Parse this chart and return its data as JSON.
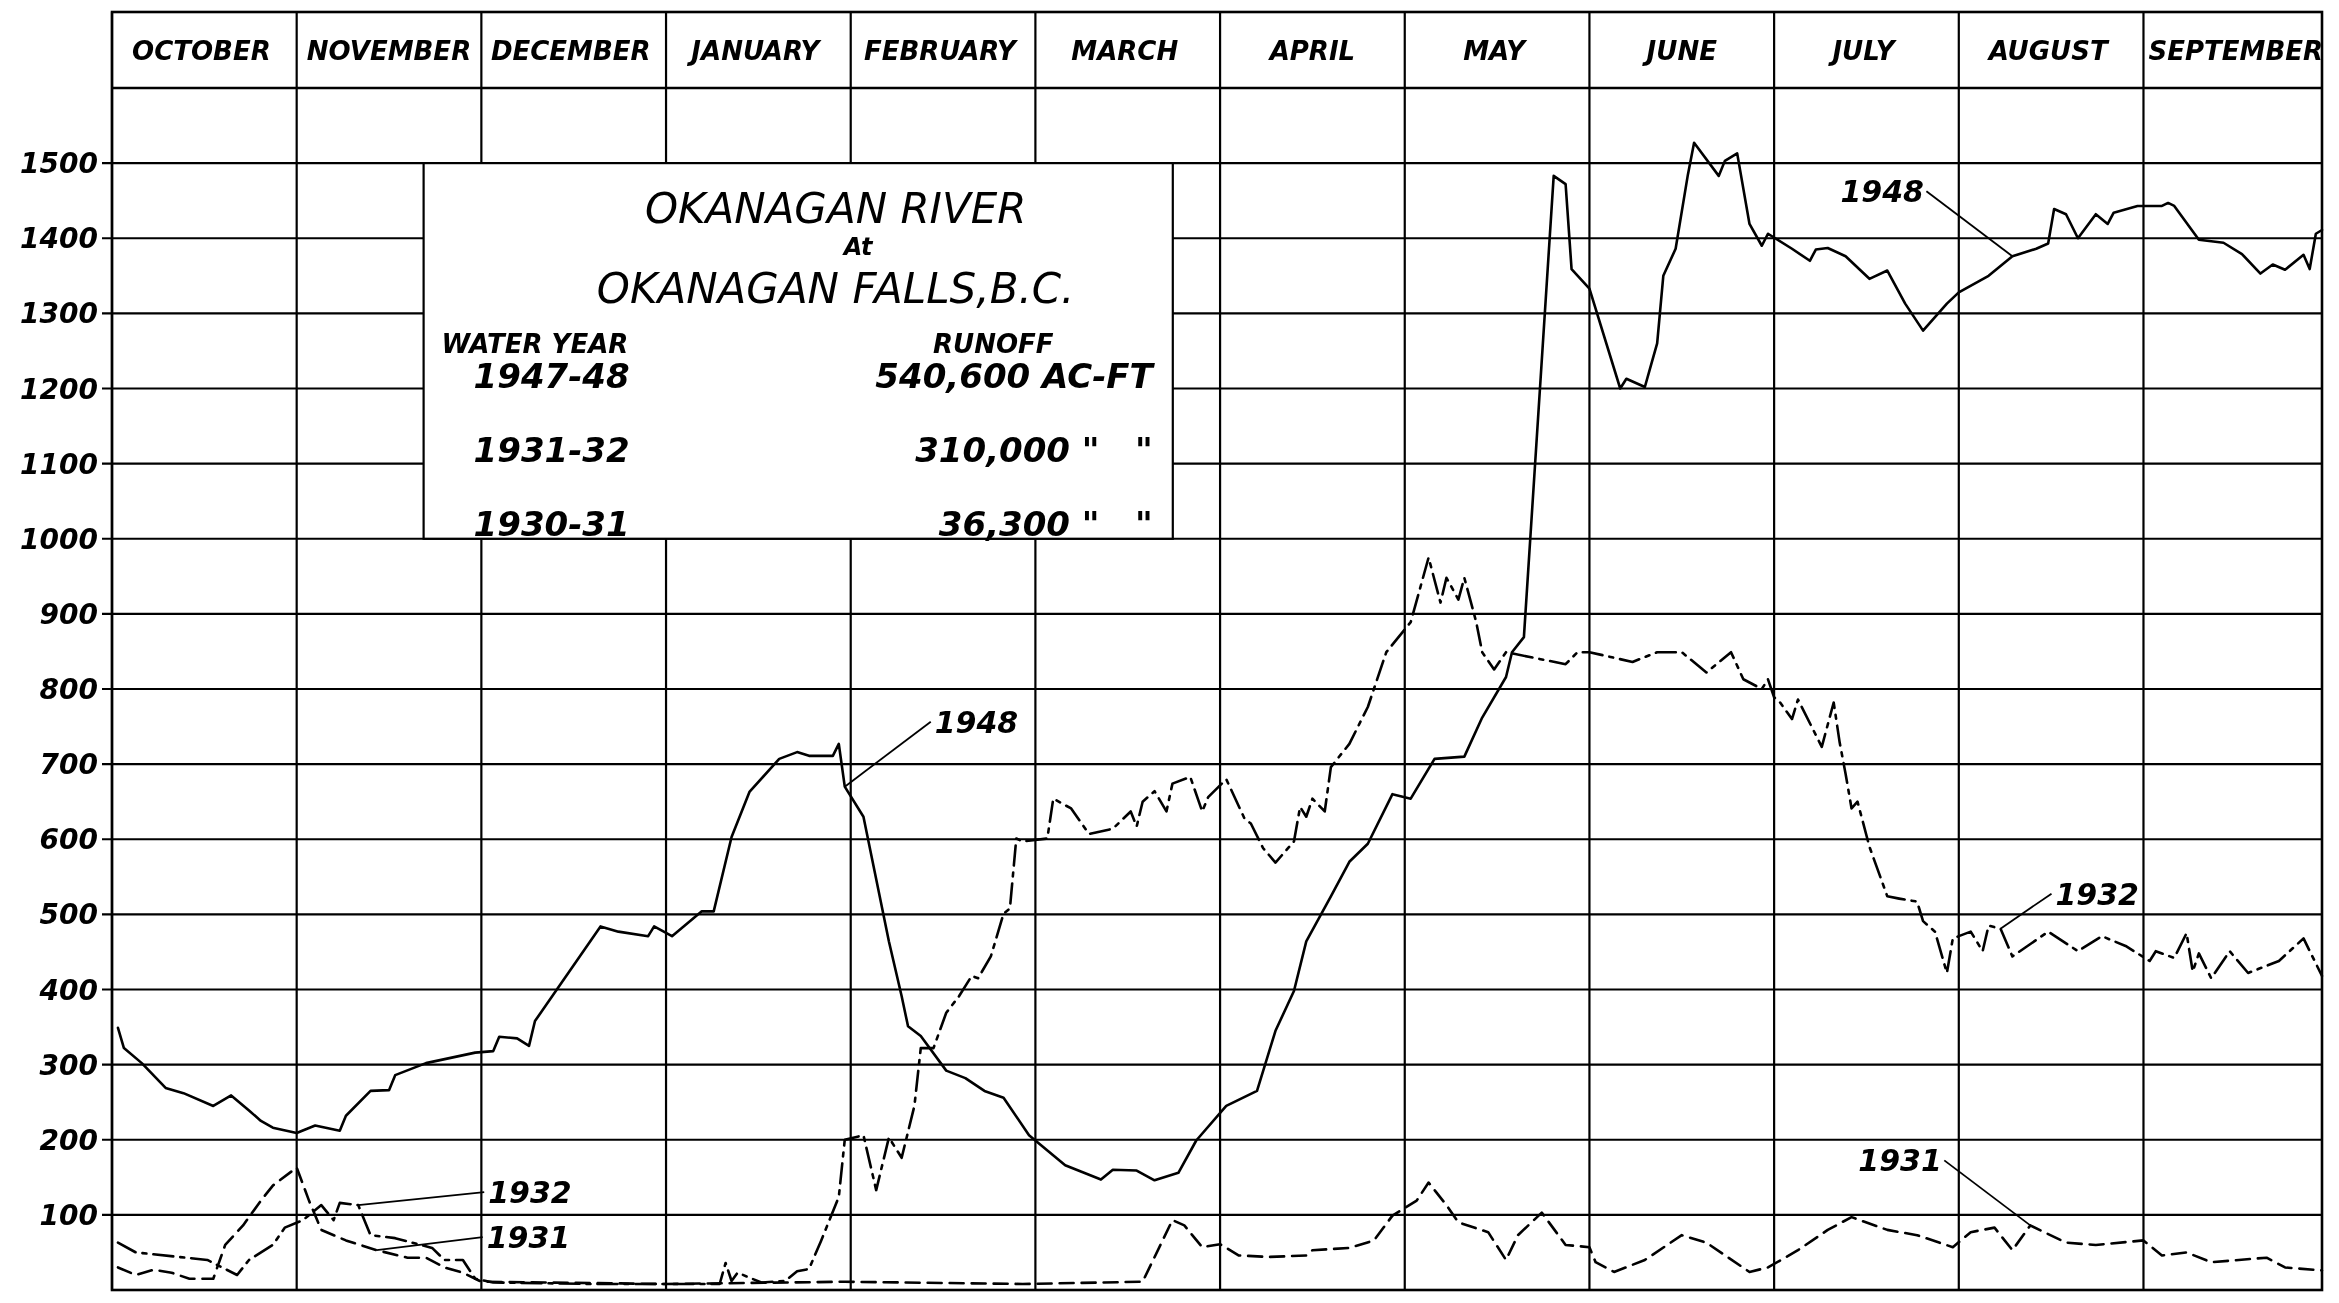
{
  "chart_data": {
    "type": "line",
    "title": "OKANAGAN RIVER",
    "subtitle": "At OKANAGAN FALLS,B.C.",
    "xlim": [
      "1947-10-01",
      "1948-09-30"
    ],
    "xticks": [
      {
        "value": "1947-10-01",
        "label": null
      },
      {
        "value": "1947-10-16",
        "label": "OCTOBER"
      },
      {
        "value": "1947-11-01",
        "label": null
      },
      {
        "value": "1947-11-16",
        "label": "NOVEMBER"
      },
      {
        "value": "1947-12-01",
        "label": null
      },
      {
        "value": "1947-12-16",
        "label": "DECEMBER"
      },
      {
        "value": "1948-01-01",
        "label": null
      },
      {
        "value": "1948-01-16",
        "label": "JANUARY"
      },
      {
        "value": "1948-02-01",
        "label": null
      },
      {
        "value": "1948-02-15",
        "label": "FEBRUARY"
      },
      {
        "value": "1948-03-01",
        "label": null
      },
      {
        "value": "1948-03-16",
        "label": "MARCH"
      },
      {
        "value": "1948-04-01",
        "label": null
      },
      {
        "value": "1948-04-16",
        "label": "APRIL"
      },
      {
        "value": "1948-05-01",
        "label": null
      },
      {
        "value": "1948-05-16",
        "label": "MAY"
      },
      {
        "value": "1948-06-01",
        "label": null
      },
      {
        "value": "1948-06-16",
        "label": "JUNE"
      },
      {
        "value": "1948-07-01",
        "label": null
      },
      {
        "value": "1948-07-16",
        "label": "JULY"
      },
      {
        "value": "1948-08-01",
        "label": null
      },
      {
        "value": "1948-08-16",
        "label": "AUGUST"
      },
      {
        "value": "1948-09-01",
        "label": null
      },
      {
        "value": "1948-09-16",
        "label": "SEPTEMBER"
      }
    ],
    "ylim": [
      0,
      1600
    ],
    "yticks": [
      100,
      200,
      300,
      400,
      500,
      600,
      700,
      800,
      900,
      1000,
      1100,
      1200,
      1300,
      1400,
      1500
    ],
    "grid": true,
    "series": [
      {
        "color": "#000000",
        "line_style": "solid",
        "x": [
          "1947-10-02",
          "1947-10-03",
          "1947-10-06",
          "1947-10-10",
          "1947-10-13",
          "1947-10-18",
          "1947-10-21",
          "1947-10-24",
          "1947-10-26",
          "1947-10-28",
          "1947-11-01",
          "1947-11-04",
          "1947-11-08",
          "1947-11-09",
          "1947-11-13",
          "1947-11-16",
          "1947-11-17",
          "1947-11-22",
          "1947-11-30",
          "1947-12-03",
          "1947-12-04",
          "1947-12-07",
          "1947-12-09",
          "1947-12-10",
          "1947-12-21",
          "1947-12-24",
          "1947-12-29",
          "1947-12-30",
          "1948-01-02",
          "1948-01-07",
          "1948-01-09",
          "1948-01-12",
          "1948-01-15",
          "1948-01-20",
          "1948-01-23",
          "1948-01-25",
          "1948-01-29",
          "1948-01-30",
          "1948-01-31",
          "1948-02-03",
          "1948-02-07",
          "1948-02-09",
          "1948-02-10",
          "1948-02-12",
          "1948-02-16",
          "1948-02-19",
          "1948-02-22",
          "1948-02-25",
          "1948-02-29",
          "1948-03-06",
          "1948-03-12",
          "1948-03-14",
          "1948-03-18",
          "1948-03-21",
          "1948-03-25",
          "1948-03-28",
          "1948-04-02",
          "1948-04-07",
          "1948-04-10",
          "1948-04-13",
          "1948-04-15",
          "1948-04-19",
          "1948-04-22",
          "1948-04-25",
          "1948-04-29",
          "1948-05-02",
          "1948-05-06",
          "1948-05-11",
          "1948-05-14",
          "1948-05-18",
          "1948-05-19",
          "1948-05-21",
          "1948-05-26",
          "1948-05-28",
          "1948-05-29",
          "1948-06-01",
          "1948-06-06",
          "1948-06-07",
          "1948-06-10",
          "1948-06-11",
          "1948-06-12",
          "1948-06-13",
          "1948-06-15",
          "1948-06-17",
          "1948-06-18",
          "1948-06-22",
          "1948-06-23",
          "1948-06-25",
          "1948-06-27",
          "1948-06-29",
          "1948-06-30",
          "1948-07-04",
          "1948-07-07",
          "1948-07-08",
          "1948-07-10",
          "1948-07-13",
          "1948-07-17",
          "1948-07-20",
          "1948-07-23",
          "1948-07-26",
          "1948-07-30",
          "1948-08-01",
          "1948-08-06",
          "1948-08-10",
          "1948-08-14",
          "1948-08-16",
          "1948-08-17",
          "1948-08-19",
          "1948-08-21",
          "1948-08-24",
          "1948-08-26",
          "1948-08-27",
          "1948-08-31",
          "1948-09-04",
          "1948-09-05",
          "1948-09-06",
          "1948-09-10",
          "1948-09-14",
          "1948-09-17",
          "1948-09-20",
          "1948-09-22",
          "1948-09-24",
          "1948-09-27",
          "1948-09-28",
          "1948-09-29",
          "1948-09-30"
        ],
        "values": [
          349,
          322,
          302,
          269,
          262,
          245,
          259,
          239,
          225,
          216,
          209,
          219,
          212,
          232,
          265,
          266,
          286,
          302,
          316,
          318,
          337,
          335,
          325,
          358,
          484,
          477,
          471,
          484,
          471,
          504,
          504,
          603,
          663,
          707,
          716,
          711,
          711,
          727,
          670,
          630,
          464,
          391,
          351,
          338,
          292,
          282,
          265,
          256,
          206,
          166,
          147,
          160,
          159,
          146,
          156,
          199,
          245,
          265,
          345,
          398,
          464,
          524,
          570,
          594,
          660,
          654,
          707,
          710,
          762,
          816,
          849,
          869,
          1483,
          1472,
          1359,
          1333,
          1200,
          1213,
          1202,
          1231,
          1260,
          1350,
          1386,
          1485,
          1527,
          1483,
          1503,
          1513,
          1419,
          1390,
          1406,
          1386,
          1370,
          1385,
          1387,
          1376,
          1346,
          1357,
          1313,
          1277,
          1313,
          1328,
          1350,
          1376,
          1386,
          1393,
          1439,
          1432,
          1400,
          1432,
          1419,
          1434,
          1443,
          1443,
          1447,
          1443,
          1398,
          1394,
          1379,
          1353,
          1365,
          1358,
          1378,
          1359,
          1406,
          1411
        ]
      },
      {
        "color": "#000000",
        "line_style": "dashdot",
        "x": [
          "1947-10-02",
          "1947-10-05",
          "1947-10-17",
          "1947-10-22",
          "1947-10-24",
          "1947-10-28",
          "1947-10-30",
          "1947-11-02",
          "1947-11-05",
          "1947-11-07",
          "1947-11-08",
          "1947-11-11",
          "1947-11-13",
          "1947-11-17",
          "1947-11-23",
          "1947-11-25",
          "1947-11-28",
          "1947-11-30",
          "1947-12-03",
          "1947-12-20",
          "1948-01-10",
          "1948-01-11",
          "1948-01-12",
          "1948-01-13",
          "1948-01-17",
          "1948-01-21",
          "1948-01-23",
          "1948-01-25",
          "1948-01-27",
          "1948-01-30",
          "1948-01-31",
          "1948-02-03",
          "1948-02-05",
          "1948-02-07",
          "1948-02-09",
          "1948-02-11",
          "1948-02-12",
          "1948-02-14",
          "1948-02-16",
          "1948-02-18",
          "1948-02-20",
          "1948-02-21",
          "1948-02-23",
          "1948-02-25",
          "1948-02-26",
          "1948-02-27",
          "1948-02-28",
          "1948-03-03",
          "1948-03-04",
          "1948-03-07",
          "1948-03-10",
          "1948-03-14",
          "1948-03-17",
          "1948-03-18",
          "1948-03-19",
          "1948-03-21",
          "1948-03-23",
          "1948-03-24",
          "1948-03-27",
          "1948-03-29",
          "1948-03-30",
          "1948-04-02",
          "1948-04-05",
          "1948-04-06",
          "1948-04-08",
          "1948-04-10",
          "1948-04-13",
          "1948-04-14",
          "1948-04-15",
          "1948-04-16",
          "1948-04-18",
          "1948-04-19",
          "1948-04-22",
          "1948-04-25",
          "1948-04-28",
          "1948-05-02",
          "1948-05-05",
          "1948-05-07",
          "1948-05-08",
          "1948-05-10",
          "1948-05-11",
          "1948-05-13",
          "1948-05-14",
          "1948-05-16",
          "1948-05-18",
          "1948-05-28",
          "1948-05-30",
          "1948-06-01",
          "1948-06-08",
          "1948-06-12",
          "1948-06-16",
          "1948-06-20",
          "1948-06-24",
          "1948-06-26",
          "1948-06-29",
          "1948-06-30",
          "1948-07-01",
          "1948-07-02",
          "1948-07-04",
          "1948-07-05",
          "1948-07-09",
          "1948-07-11",
          "1948-07-12",
          "1948-07-13",
          "1948-07-14",
          "1948-07-15",
          "1948-07-17",
          "1948-07-20",
          "1948-07-22",
          "1948-07-25",
          "1948-07-26",
          "1948-07-28",
          "1948-07-30",
          "1948-07-31",
          "1948-08-03",
          "1948-08-05",
          "1948-08-06",
          "1948-08-08",
          "1948-08-10",
          "1948-08-16",
          "1948-08-21",
          "1948-08-25",
          "1948-08-29",
          "1948-09-02",
          "1948-09-03",
          "1948-09-06",
          "1948-09-08",
          "1948-09-09",
          "1948-09-10",
          "1948-09-12",
          "1948-09-15",
          "1948-09-18",
          "1948-09-23",
          "1948-09-27",
          "1948-09-30"
        ],
        "values": [
          63,
          50,
          40,
          20,
          40,
          60,
          83,
          93,
          113,
          93,
          116,
          113,
          73,
          69,
          56,
          40,
          40,
          15,
          10,
          8,
          8,
          36,
          12,
          23,
          10,
          12,
          25,
          28,
          65,
          124,
          200,
          206,
          133,
          203,
          176,
          245,
          322,
          322,
          369,
          391,
          418,
          415,
          444,
          501,
          508,
          601,
          597,
          601,
          654,
          641,
          607,
          614,
          637,
          617,
          650,
          664,
          637,
          674,
          683,
          637,
          656,
          680,
          627,
          621,
          588,
          569,
          597,
          643,
          630,
          654,
          637,
          696,
          727,
          776,
          849,
          889,
          975,
          915,
          948,
          919,
          948,
          889,
          849,
          826,
          849,
          833,
          849,
          849,
          836,
          849,
          849,
          822,
          849,
          813,
          800,
          813,
          789,
          782,
          760,
          786,
          723,
          782,
          729,
          687,
          641,
          650,
          590,
          524,
          521,
          517,
          491,
          477,
          422,
          468,
          477,
          451,
          485,
          481,
          444,
          477,
          451,
          471,
          458,
          438,
          451,
          442,
          475,
          424,
          448,
          415,
          451,
          422,
          438,
          468,
          418
        ]
      },
      {
        "color": "#000000",
        "line_style": "dashed",
        "x": [
          "1947-10-02",
          "1947-10-05",
          "1947-10-08",
          "1947-10-11",
          "1947-10-14",
          "1947-10-18",
          "1947-10-20",
          "1947-10-23",
          "1947-10-26",
          "1947-10-28",
          "1947-11-01",
          "1947-11-03",
          "1947-11-05",
          "1947-11-09",
          "1947-11-14",
          "1947-11-19",
          "1947-11-22",
          "1947-11-25",
          "1947-11-28",
          "1947-12-01",
          "1948-01-01",
          "1948-01-31",
          "1948-02-28",
          "1948-03-19",
          "1948-03-24",
          "1948-03-26",
          "1948-03-29",
          "1948-04-01",
          "1948-04-04",
          "1948-04-09",
          "1948-04-15",
          "1948-04-16",
          "1948-04-22",
          "1948-04-26",
          "1948-04-29",
          "1948-05-03",
          "1948-05-05",
          "1948-05-08",
          "1948-05-10",
          "1948-05-15",
          "1948-05-18",
          "1948-05-20",
          "1948-05-24",
          "1948-05-28",
          "1948-06-01",
          "1948-06-02",
          "1948-06-05",
          "1948-06-10",
          "1948-06-16",
          "1948-06-20",
          "1948-06-27",
          "1948-06-30",
          "1948-07-05",
          "1948-07-10",
          "1948-07-14",
          "1948-07-20",
          "1948-07-25",
          "1948-07-31",
          "1948-08-03",
          "1948-08-07",
          "1948-08-10",
          "1948-08-13",
          "1948-08-19",
          "1948-08-24",
          "1948-09-01",
          "1948-09-04",
          "1948-09-08",
          "1948-09-12",
          "1948-09-21",
          "1948-09-24",
          "1948-09-30"
        ],
        "values": [
          30,
          20,
          27,
          23,
          15,
          15,
          60,
          86,
          119,
          139,
          163,
          119,
          80,
          66,
          53,
          43,
          43,
          30,
          23,
          11,
          8,
          11,
          8,
          11,
          93,
          86,
          57,
          61,
          46,
          44,
          46,
          53,
          56,
          66,
          99,
          119,
          143,
          113,
          90,
          77,
          40,
          73,
          103,
          60,
          57,
          37,
          24,
          40,
          73,
          63,
          24,
          30,
          53,
          80,
          97,
          80,
          73,
          57,
          77,
          83,
          53,
          86,
          63,
          60,
          66,
          46,
          50,
          37,
          43,
          30,
          26
        ]
      }
    ],
    "annotations": [
      "WATER YEAR",
      "RUNOFF",
      "1947-48",
      "540,600 AC-FT",
      "1931-32",
      "310,000 \"   \"",
      "1930-31",
      "36,300 \"   \"",
      {
        "text": "1948",
        "x": "1948-01-31",
        "y": 670
      },
      {
        "text": "1948",
        "x": "1948-08-10",
        "y": 1376
      },
      {
        "text": "1932",
        "x": "1948-08-08",
        "y": 481
      },
      {
        "text": "1931",
        "x": "1948-08-13",
        "y": 86
      },
      {
        "text": "1932",
        "x": "1947-11-11",
        "y": 113
      },
      {
        "text": "1931",
        "x": "1947-11-14",
        "y": 53
      }
    ]
  }
}
